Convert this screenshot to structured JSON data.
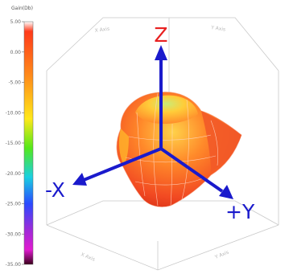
{
  "colorbar": {
    "title": "Gain(Db)",
    "ticks": [
      "5.00",
      "0.00",
      "-5.00",
      "-10.00",
      "-15.00",
      "-20.00",
      "-25.00",
      "-30.00",
      "-35.00"
    ],
    "colors": [
      "#ffffff",
      "#ff3a1a",
      "#ff8a1a",
      "#ffe81a",
      "#55e81a",
      "#1ad0e0",
      "#2a4aff",
      "#a02ad8",
      "#e01ad0",
      "#3a001a"
    ]
  },
  "box_labels": {
    "top_left": "X Axis",
    "top_right": "Y Axis",
    "bottom_left": "X Axis",
    "bottom_right": "Y Axis"
  },
  "axes": {
    "z": "Z",
    "neg_x": "-X",
    "pos_y": "+Y",
    "arrow_color": "#1a1acc",
    "label_z_color": "#e82020",
    "label_xy_color": "#1a1acc"
  }
}
